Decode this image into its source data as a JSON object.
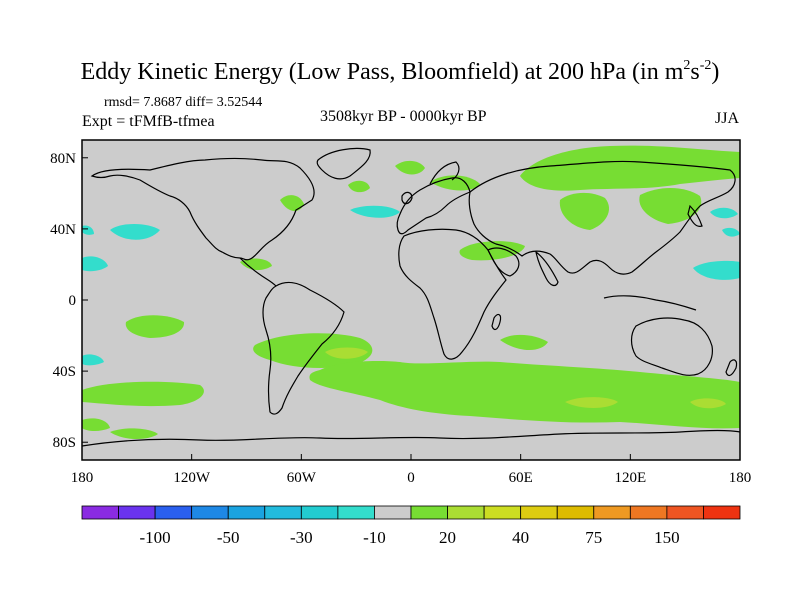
{
  "title": {
    "text": "Eddy Kinetic Energy (Low Pass, Bloomfield) at 200 hPa (in m",
    "sup1": "2",
    "mid": "s",
    "sup2": "-2",
    "end": ")"
  },
  "stats": "rmsd= 7.8687 diff= 3.52544",
  "expt": "Expt = tFMfB-tfmea",
  "period": "3508kyr BP - 0000kyr BP",
  "season": "JJA",
  "map": {
    "lat_ticks": [
      "80N",
      "40N",
      "0",
      "40S",
      "80S"
    ],
    "lon_ticks": [
      "180",
      "120W",
      "60W",
      "0",
      "60E",
      "120E",
      "180"
    ],
    "lat_values": [
      80,
      40,
      0,
      -40,
      -80
    ],
    "lon_values": [
      -180,
      -120,
      -60,
      0,
      60,
      120,
      180
    ],
    "background_color": "#cccccc",
    "positive_color": "#77dd33",
    "strong_positive_color": "#aadd33",
    "negative_color": "#33ddcc"
  },
  "colorbar": {
    "colors": [
      "#8a2be2",
      "#6a33ee",
      "#2a5fee",
      "#1e88e5",
      "#1aa3e0",
      "#22bbdd",
      "#22ccd0",
      "#33ddcc",
      "#cccccc",
      "#77dd33",
      "#aadd33",
      "#ccdd22",
      "#ddcc11",
      "#ddbb00",
      "#ee9922",
      "#ee7722",
      "#ee5522",
      "#ee3311"
    ],
    "labels": [
      "-100",
      "-50",
      "-30",
      "-10",
      "20",
      "40",
      "75",
      "150"
    ]
  }
}
